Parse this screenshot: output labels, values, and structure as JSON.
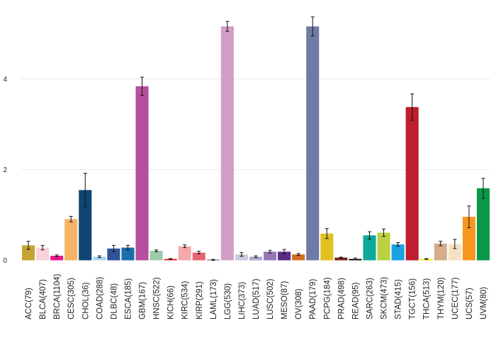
{
  "chart_data": {
    "type": "bar",
    "title": "",
    "xlabel": "",
    "ylabel": "",
    "ylim": [
      0,
      5.6
    ],
    "y_ticks": [
      0,
      2,
      4
    ],
    "y_tick_labels": [
      "0",
      "2",
      "4"
    ],
    "grid": true,
    "legend": "none",
    "error_bars": true,
    "categories": [
      "ACC(79)",
      "BLCA(407)",
      "BRCA(1104)",
      "CESC(305)",
      "CHOL(36)",
      "COAD(288)",
      "DLBC(48)",
      "ESCA(185)",
      "GBM(167)",
      "HNSC(522)",
      "KICH(66)",
      "KIRC(534)",
      "KIRP(291)",
      "LAML(173)",
      "LGG(530)",
      "LIHC(373)",
      "LUAD(517)",
      "LUSC(502)",
      "MESO(87)",
      "OV(308)",
      "PAAD(179)",
      "PCPG(184)",
      "PRAD(498)",
      "READ(95)",
      "SARC(263)",
      "SKCM(473)",
      "STAD(415)",
      "TGCT(156)",
      "THCA(513)",
      "THYM(120)",
      "UCEC(177)",
      "UCS(57)",
      "UVM(80)"
    ],
    "values": [
      0.33,
      0.28,
      0.1,
      0.91,
      1.55,
      0.08,
      0.26,
      0.28,
      3.84,
      0.21,
      0.03,
      0.31,
      0.17,
      0.01,
      5.16,
      0.13,
      0.08,
      0.19,
      0.19,
      0.13,
      5.16,
      0.59,
      0.06,
      0.03,
      0.55,
      0.61,
      0.35,
      3.38,
      0.03,
      0.37,
      0.36,
      0.96,
      1.59
    ],
    "errors": [
      0.09,
      0.05,
      0.02,
      0.06,
      0.37,
      0.02,
      0.07,
      0.05,
      0.2,
      0.02,
      0.01,
      0.03,
      0.03,
      0.01,
      0.11,
      0.04,
      0.02,
      0.03,
      0.05,
      0.02,
      0.21,
      0.11,
      0.01,
      0.02,
      0.08,
      0.08,
      0.04,
      0.29,
      0.01,
      0.05,
      0.1,
      0.24,
      0.22
    ],
    "colors": [
      "#c4a334",
      "#f9d2dc",
      "#e6178f",
      "#f7b467",
      "#0f4574",
      "#a5d5ee",
      "#2f5499",
      "#1a6eac",
      "#b64f9e",
      "#99ccab",
      "#e8191a",
      "#f5aaaa",
      "#e86670",
      "#666666",
      "#d19ec7",
      "#c8c9dd",
      "#a8a8cc",
      "#9677b8",
      "#5c2b84",
      "#d36e20",
      "#6f7ba4",
      "#e1c023",
      "#7a1d1c",
      "#000000",
      "#0ea99a",
      "#bbd141",
      "#1ba2e2",
      "#be1e2d",
      "#f2e800",
      "#d5ad8a",
      "#f6e1c4",
      "#f9961e",
      "#0a9747"
    ]
  }
}
